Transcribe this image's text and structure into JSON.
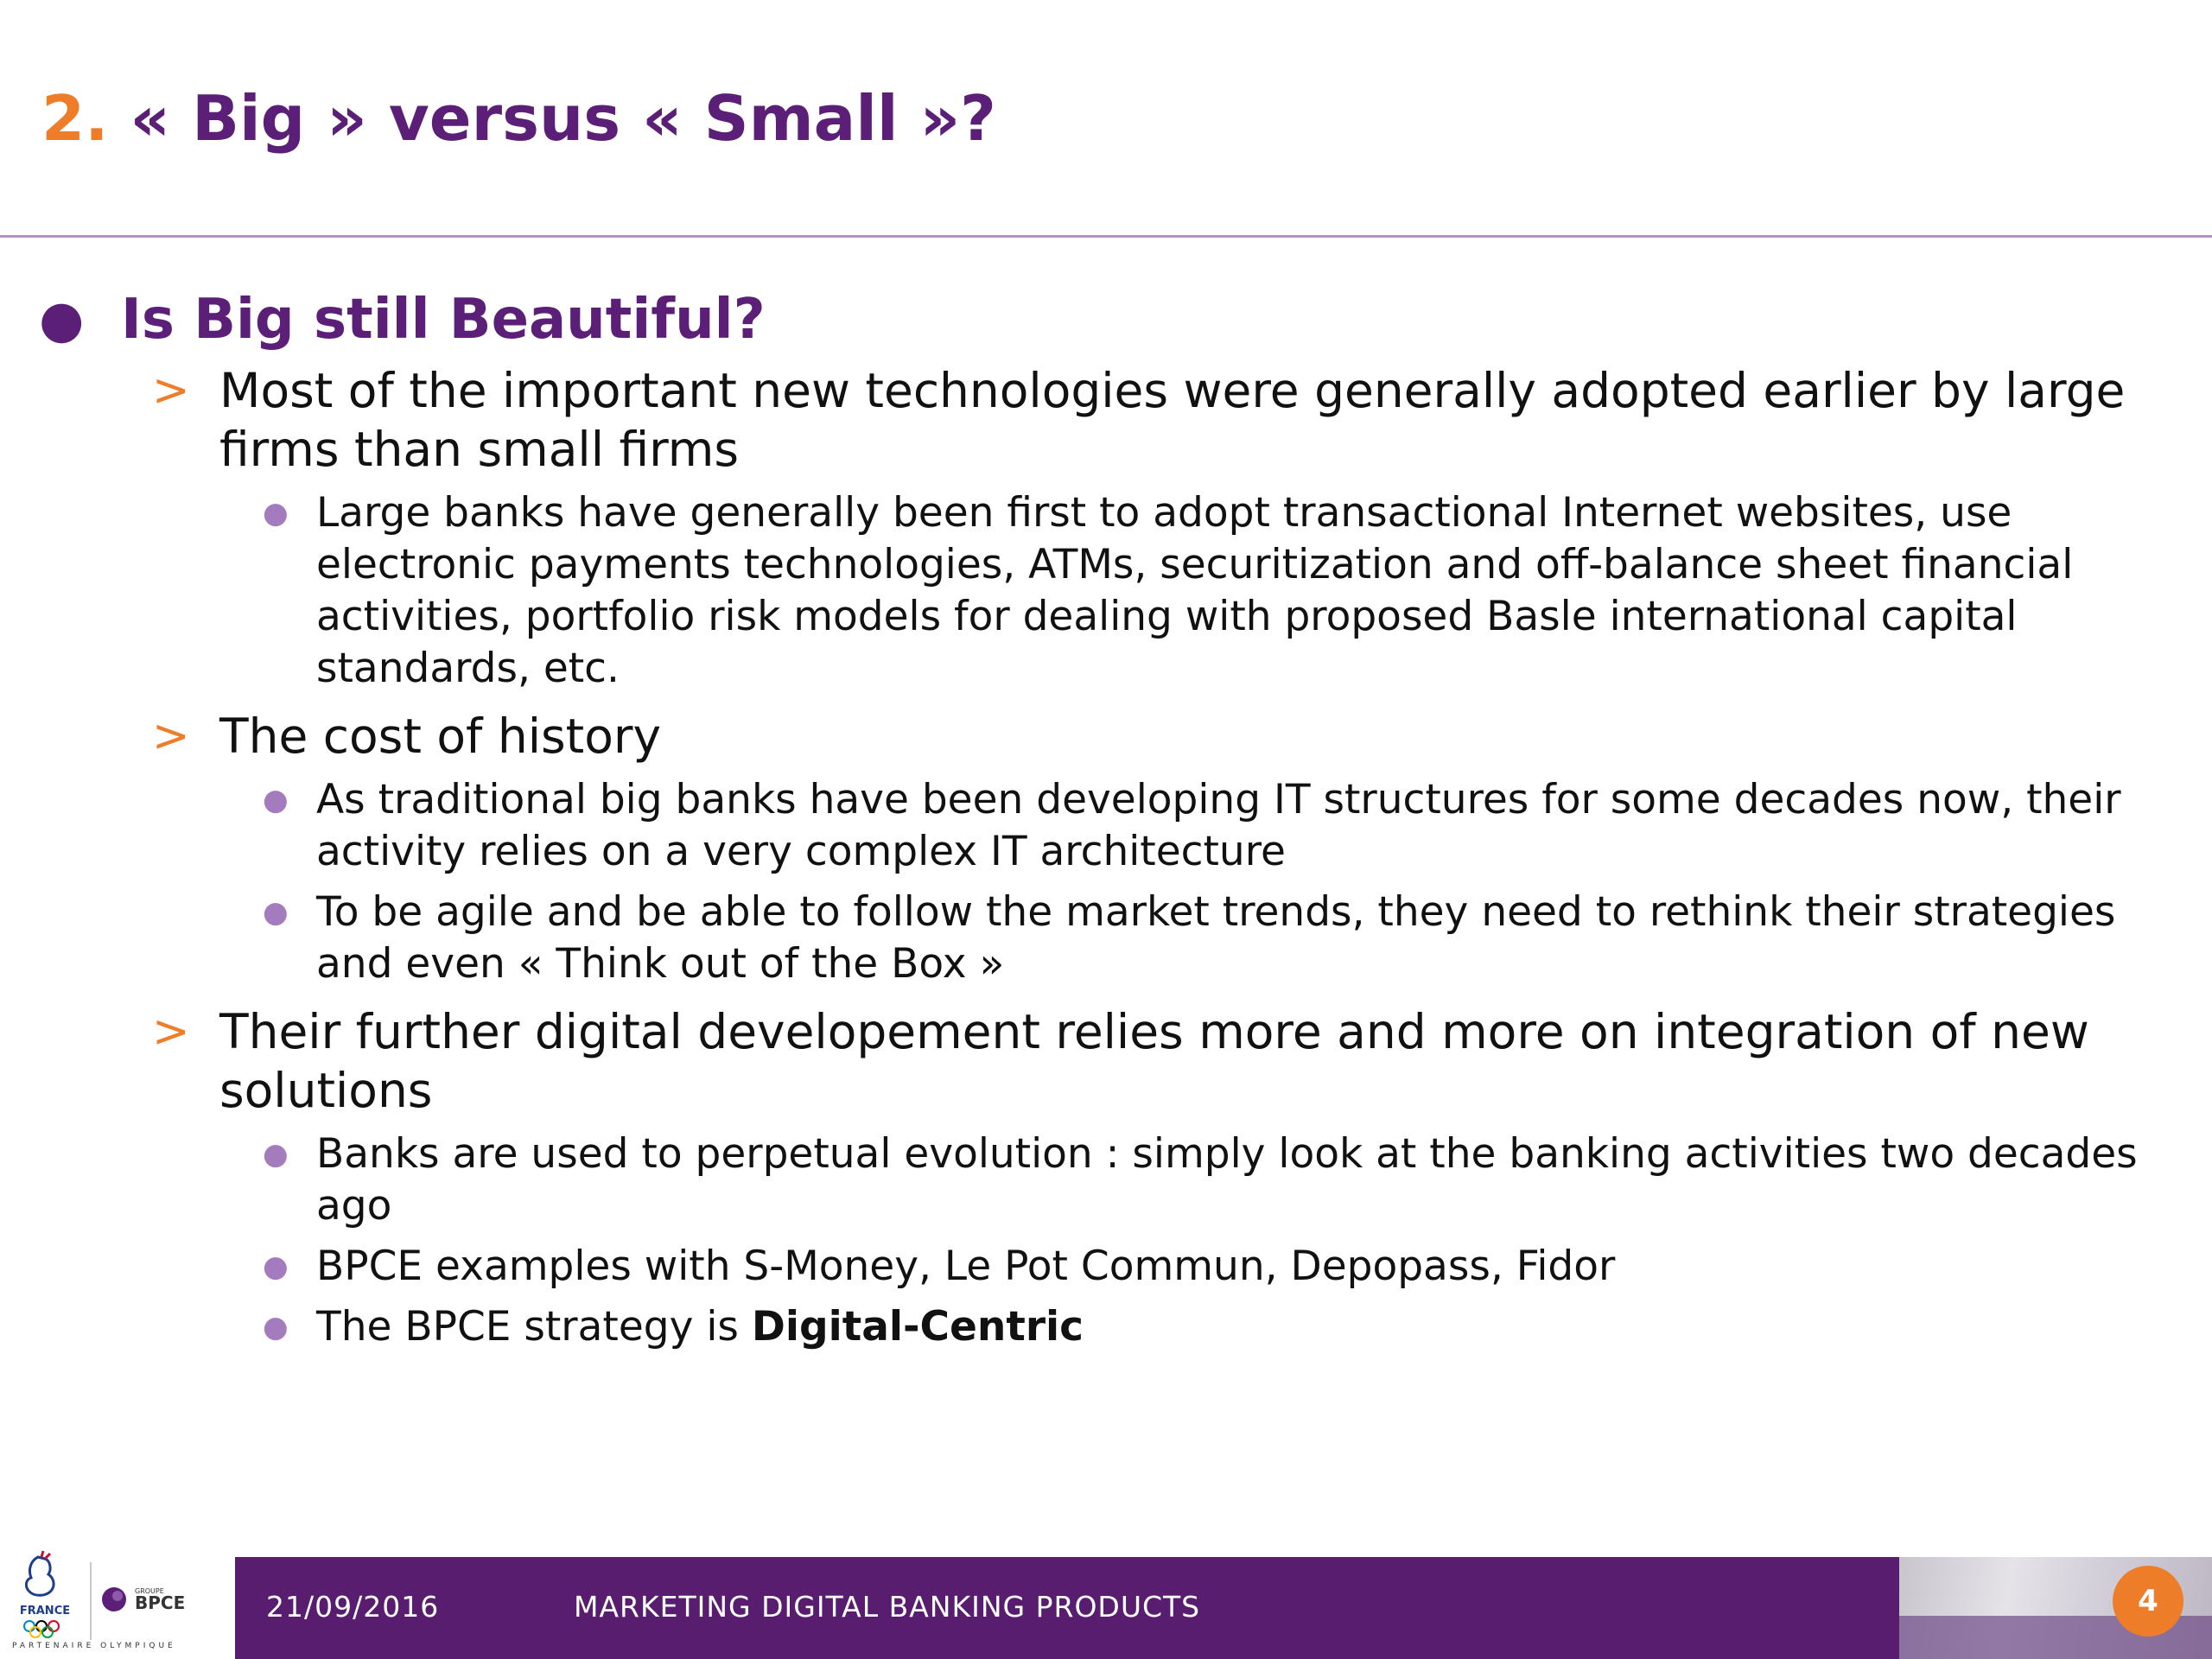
{
  "slide": {
    "title_number": "2.",
    "title_text": "« Big » versus « Small »?",
    "page_number": "4"
  },
  "content": {
    "heading": "Is Big still Beautiful?",
    "points": [
      {
        "text": "Most of the important new technologies were generally adopted earlier by large firms than small firms",
        "subpoints": [
          "Large banks have generally been first to adopt transactional Internet websites, use electronic payments technologies, ATMs, securitization and off-balance sheet financial activities, portfolio risk models for dealing with proposed Basle international capital standards, etc."
        ]
      },
      {
        "text": "The cost of history",
        "subpoints": [
          "As traditional big banks have been developing IT structures for some decades now, their activity relies on a very complex IT architecture",
          "To be agile and be able to follow the market trends, they need to rethink their strategies and even « Think out of the Box »"
        ]
      },
      {
        "text": "Their further digital developement relies more and more on integration of new solutions",
        "subpoints": [
          "Banks are used to perpetual evolution : simply look at the banking activities two decades ago",
          "BPCE examples with S-Money, Le Pot Commun, Depopass, Fidor"
        ],
        "last_subpoint_prefix": "The BPCE strategy is ",
        "last_subpoint_bold": "Digital-Centric"
      }
    ]
  },
  "footer": {
    "date": "21/09/2016",
    "title": "MARKETING DIGITAL BANKING PRODUCTS",
    "logo_france": "FRANCE",
    "logo_groupe": "GROUPE",
    "logo_bpce": "BPCE",
    "partner_text": "PARTENAIRE OLYMPIQUE"
  },
  "colors": {
    "purple": "#5b1f78",
    "orange": "#ee7d2a",
    "footer_purple": "#591d6f",
    "bullet_lilac": "#a47bbd"
  }
}
